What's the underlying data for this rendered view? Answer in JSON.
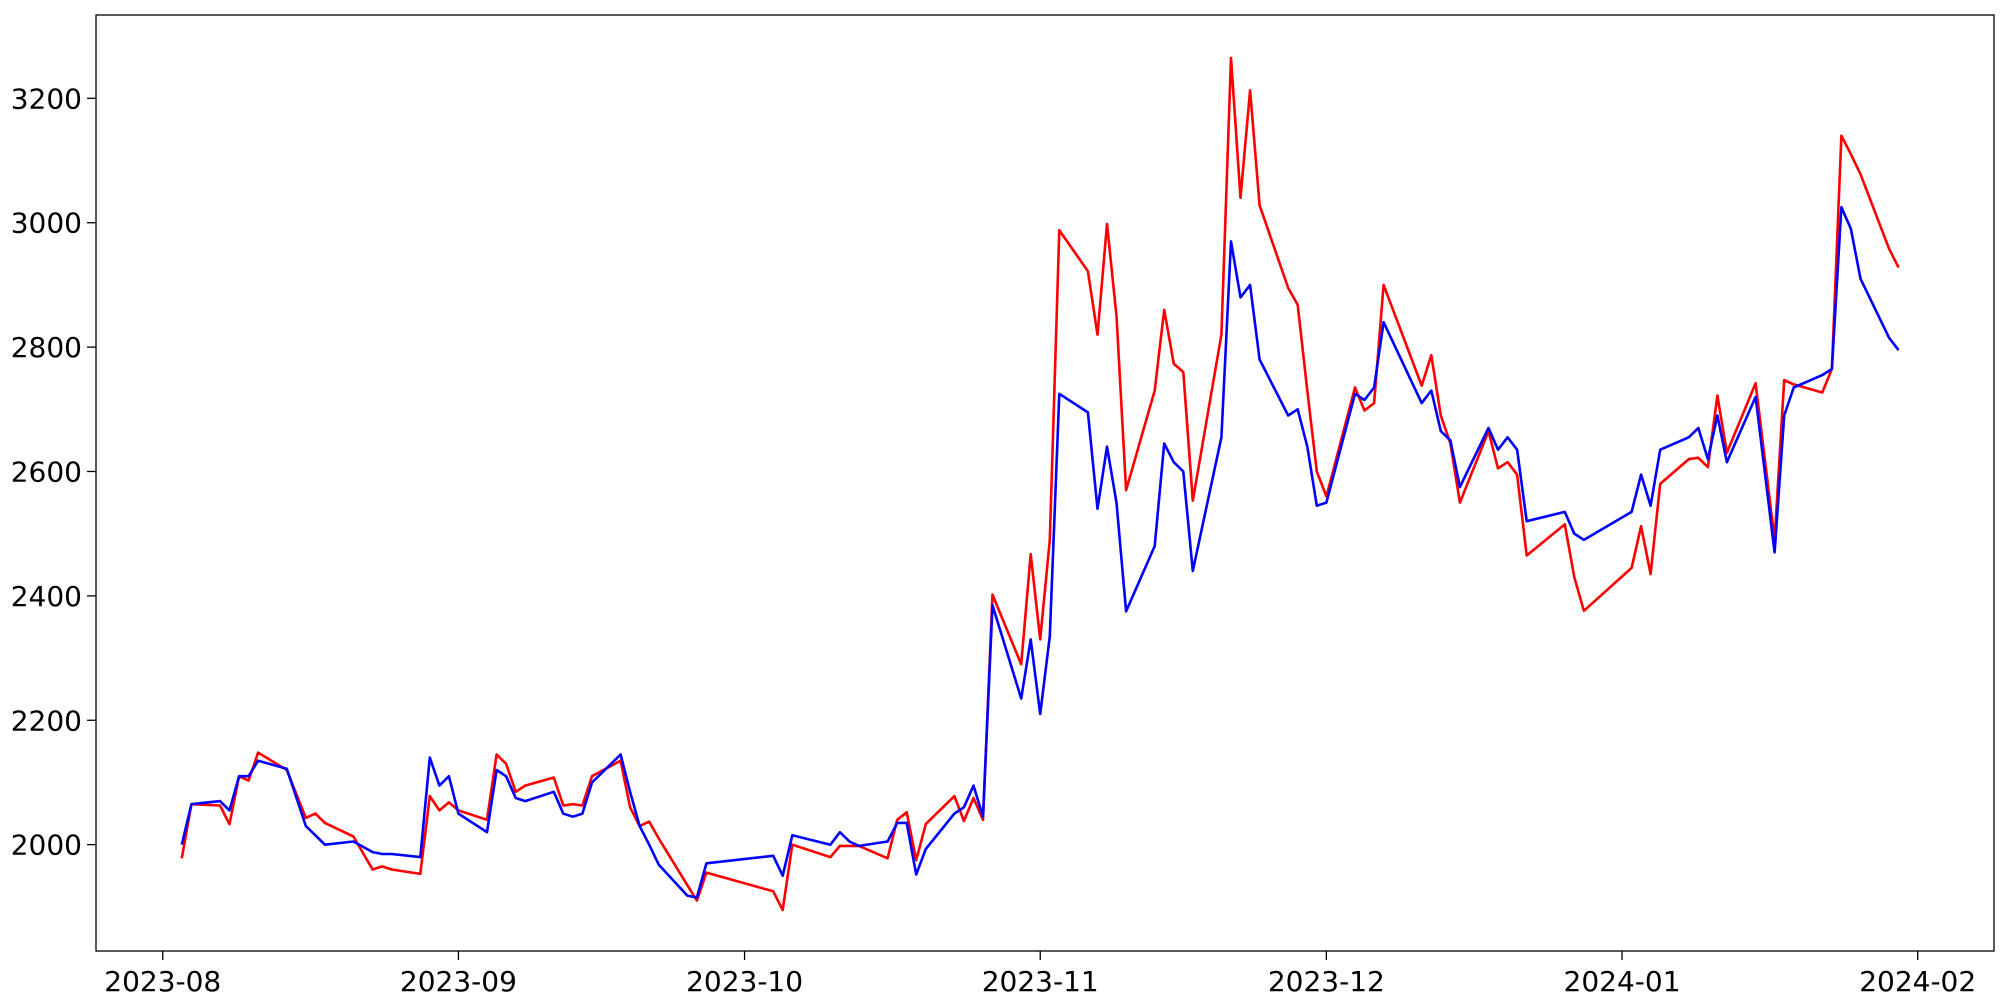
{
  "chart_data": {
    "type": "line",
    "x": [
      "2023-08-03",
      "2023-08-04",
      "2023-08-07",
      "2023-08-08",
      "2023-08-09",
      "2023-08-10",
      "2023-08-11",
      "2023-08-14",
      "2023-08-16",
      "2023-08-17",
      "2023-08-18",
      "2023-08-21",
      "2023-08-23",
      "2023-08-24",
      "2023-08-25",
      "2023-08-28",
      "2023-08-29",
      "2023-08-30",
      "2023-08-31",
      "2023-09-01",
      "2023-09-04",
      "2023-09-05",
      "2023-09-06",
      "2023-09-07",
      "2023-09-08",
      "2023-09-11",
      "2023-09-12",
      "2023-09-13",
      "2023-09-14",
      "2023-09-15",
      "2023-09-18",
      "2023-09-19",
      "2023-09-20",
      "2023-09-21",
      "2023-09-22",
      "2023-09-25",
      "2023-09-26",
      "2023-09-27",
      "2023-10-04",
      "2023-10-05",
      "2023-10-06",
      "2023-10-10",
      "2023-10-11",
      "2023-10-12",
      "2023-10-13",
      "2023-10-16",
      "2023-10-17",
      "2023-10-18",
      "2023-10-19",
      "2023-10-20",
      "2023-10-23",
      "2023-10-24",
      "2023-10-25",
      "2023-10-26",
      "2023-10-27",
      "2023-10-30",
      "2023-10-31",
      "2023-11-01",
      "2023-11-02",
      "2023-11-03",
      "2023-11-06",
      "2023-11-07",
      "2023-11-08",
      "2023-11-09",
      "2023-11-10",
      "2023-11-13",
      "2023-11-14",
      "2023-11-15",
      "2023-11-16",
      "2023-11-17",
      "2023-11-20",
      "2023-11-21",
      "2023-11-22",
      "2023-11-23",
      "2023-11-24",
      "2023-11-27",
      "2023-11-28",
      "2023-11-29",
      "2023-11-30",
      "2023-12-01",
      "2023-12-04",
      "2023-12-05",
      "2023-12-06",
      "2023-12-07",
      "2023-12-11",
      "2023-12-12",
      "2023-12-13",
      "2023-12-14",
      "2023-12-15",
      "2023-12-18",
      "2023-12-19",
      "2023-12-20",
      "2023-12-21",
      "2023-12-22",
      "2023-12-26",
      "2023-12-27",
      "2023-12-28",
      "2024-01-02",
      "2024-01-03",
      "2024-01-04",
      "2024-01-05",
      "2024-01-08",
      "2024-01-09",
      "2024-01-10",
      "2024-01-11",
      "2024-01-12",
      "2024-01-15",
      "2024-01-17",
      "2024-01-18",
      "2024-01-19",
      "2024-01-22",
      "2024-01-23",
      "2024-01-24",
      "2024-01-25",
      "2024-01-26",
      "2024-01-29",
      "2024-01-30"
    ],
    "series": [
      {
        "color": "#ff0000",
        "values": [
          1978,
          2065,
          2063,
          2033,
          2110,
          2103,
          2148,
          2120,
          2043,
          2050,
          2035,
          2013,
          1960,
          1965,
          1960,
          1953,
          2078,
          2055,
          2068,
          2055,
          2040,
          2145,
          2130,
          2085,
          2095,
          2108,
          2063,
          2065,
          2063,
          2110,
          2135,
          2060,
          2030,
          2037,
          2010,
          1935,
          1910,
          1955,
          1925,
          1895,
          2000,
          1980,
          1998,
          1998,
          1998,
          1978,
          2040,
          2052,
          1975,
          2033,
          2078,
          2038,
          2075,
          2040,
          2402,
          2290,
          2467,
          2330,
          2490,
          2988,
          2922,
          2820,
          2998,
          2850,
          2570,
          2730,
          2860,
          2773,
          2760,
          2553,
          2820,
          3265,
          3040,
          3213,
          3028,
          2895,
          2868,
          2730,
          2600,
          2560,
          2735,
          2698,
          2710,
          2900,
          2738,
          2787,
          2690,
          2645,
          2550,
          2665,
          2605,
          2615,
          2595,
          2465,
          2515,
          2430,
          2376,
          2445,
          2512,
          2435,
          2580,
          2620,
          2622,
          2607,
          2722,
          2630,
          2742,
          2490,
          2747,
          2740,
          2727,
          2765,
          3140,
          3110,
          3078,
          2958,
          2928
        ]
      },
      {
        "color": "#0000ff",
        "values": [
          2000,
          2065,
          2070,
          2055,
          2110,
          2110,
          2135,
          2122,
          2030,
          2015,
          2000,
          2005,
          1988,
          1985,
          1985,
          1980,
          2140,
          2095,
          2110,
          2050,
          2020,
          2120,
          2110,
          2075,
          2070,
          2085,
          2050,
          2045,
          2050,
          2100,
          2145,
          2085,
          2030,
          2000,
          1968,
          1918,
          1915,
          1970,
          1982,
          1950,
          2015,
          2000,
          2020,
          2005,
          1998,
          2005,
          2035,
          2035,
          1952,
          1993,
          2050,
          2060,
          2095,
          2045,
          2385,
          2235,
          2330,
          2210,
          2335,
          2725,
          2695,
          2540,
          2640,
          2550,
          2375,
          2480,
          2645,
          2615,
          2600,
          2440,
          2655,
          2970,
          2880,
          2900,
          2780,
          2690,
          2700,
          2640,
          2545,
          2550,
          2725,
          2715,
          2735,
          2840,
          2710,
          2730,
          2665,
          2650,
          2575,
          2670,
          2635,
          2655,
          2635,
          2520,
          2535,
          2500,
          2490,
          2535,
          2595,
          2545,
          2635,
          2655,
          2670,
          2620,
          2690,
          2615,
          2720,
          2470,
          2690,
          2735,
          2755,
          2765,
          3025,
          2990,
          2910,
          2815,
          2795
        ]
      }
    ],
    "xlim": [
      "2023-07-25",
      "2024-02-09"
    ],
    "xticks": [
      {
        "value": "2023-08-01",
        "label": "2023-08"
      },
      {
        "value": "2023-09-01",
        "label": "2023-09"
      },
      {
        "value": "2023-10-01",
        "label": "2023-10"
      },
      {
        "value": "2023-11-01",
        "label": "2023-11"
      },
      {
        "value": "2023-12-01",
        "label": "2023-12"
      },
      {
        "value": "2024-01-01",
        "label": "2024-01"
      },
      {
        "value": "2024-02-01",
        "label": "2024-02"
      }
    ],
    "ylim": [
      1829,
      3334
    ],
    "yticks": [
      2000,
      2200,
      2400,
      2600,
      2800,
      3000,
      3200
    ]
  }
}
